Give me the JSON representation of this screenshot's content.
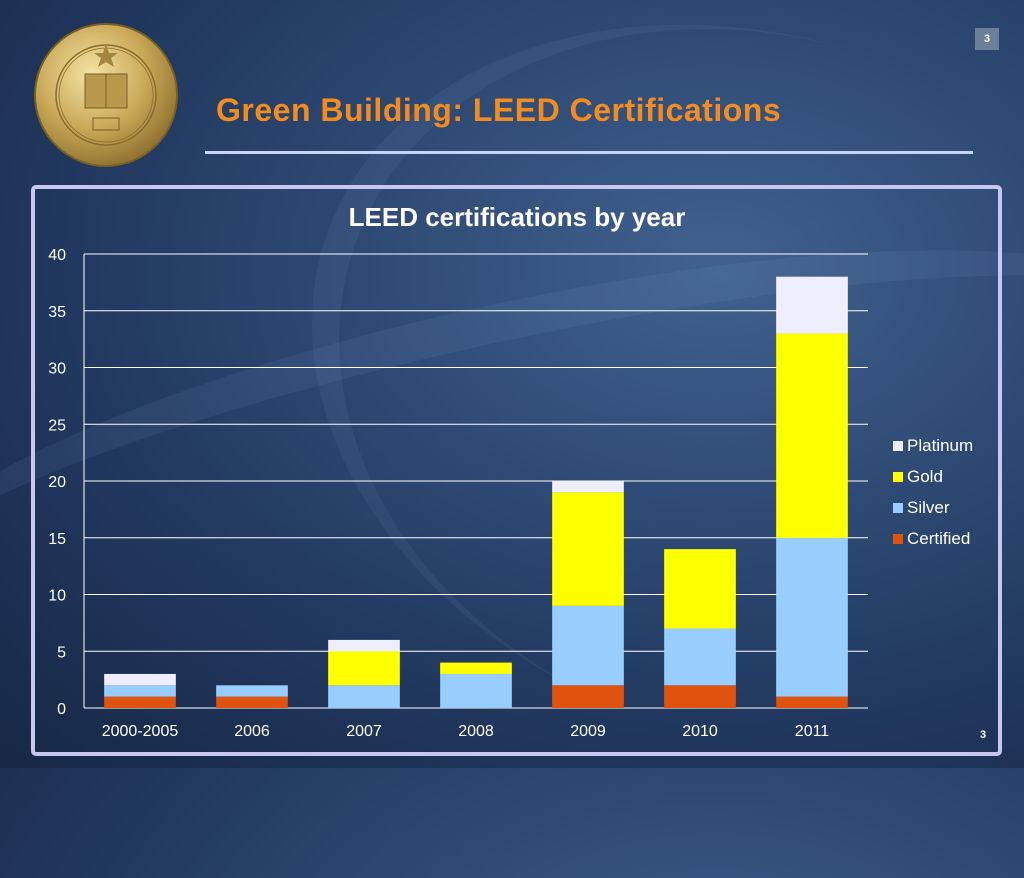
{
  "slide": {
    "title": "Green Building: LEED Certifications",
    "page_badge": "3",
    "slide_number": "3"
  },
  "colors": {
    "title": "#f28c1e",
    "Certified": "#e0530f",
    "Silver": "#99ccff",
    "Gold": "#ffff00",
    "Platinum": "#eeeeff",
    "grid": "#ffffff",
    "text": "#ffffff"
  },
  "chart_data": {
    "type": "bar",
    "stacked": true,
    "title": "LEED certifications by year",
    "categories": [
      "2000-2005",
      "2006",
      "2007",
      "2008",
      "2009",
      "2010",
      "2011"
    ],
    "series": [
      {
        "name": "Certified",
        "values": [
          1,
          1,
          0,
          0,
          2,
          2,
          1
        ]
      },
      {
        "name": "Silver",
        "values": [
          1,
          1,
          2,
          3,
          7,
          5,
          14
        ]
      },
      {
        "name": "Gold",
        "values": [
          0,
          0,
          3,
          1,
          10,
          7,
          18
        ]
      },
      {
        "name": "Platinum",
        "values": [
          1,
          0,
          1,
          0,
          1,
          0,
          5
        ]
      }
    ],
    "ylim": [
      0,
      40
    ],
    "yticks": [
      0,
      5,
      10,
      15,
      20,
      25,
      30,
      35,
      40
    ],
    "grid": true,
    "legend": {
      "placement": "right",
      "order": [
        "Platinum",
        "Gold",
        "Silver",
        "Certified"
      ]
    }
  }
}
